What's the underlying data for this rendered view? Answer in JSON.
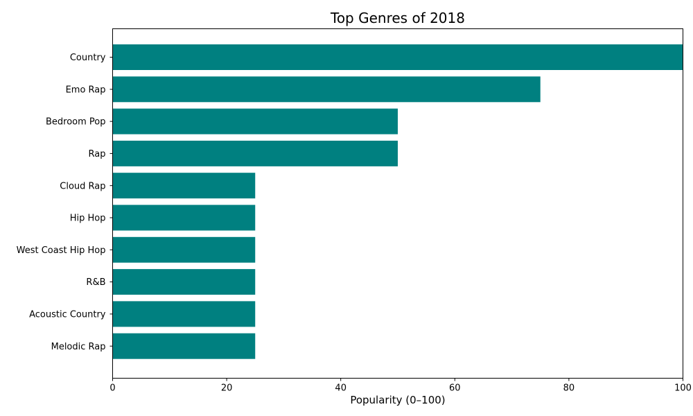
{
  "chart_data": {
    "type": "bar",
    "orientation": "horizontal",
    "title": "Top Genres of 2018",
    "xlabel": "Popularity (0–100)",
    "ylabel": "",
    "xlim": [
      0,
      100
    ],
    "xticks": [
      0,
      20,
      40,
      60,
      80,
      100
    ],
    "grid": false,
    "legend": "none",
    "bar_color": "#008080",
    "categories": [
      "Country",
      "Emo Rap",
      "Bedroom Pop",
      "Rap",
      "Cloud Rap",
      "Hip Hop",
      "West Coast Hip Hop",
      "R&B",
      "Acoustic Country",
      "Melodic Rap"
    ],
    "values": [
      100,
      75,
      50,
      50,
      25,
      25,
      25,
      25,
      25,
      25
    ]
  }
}
